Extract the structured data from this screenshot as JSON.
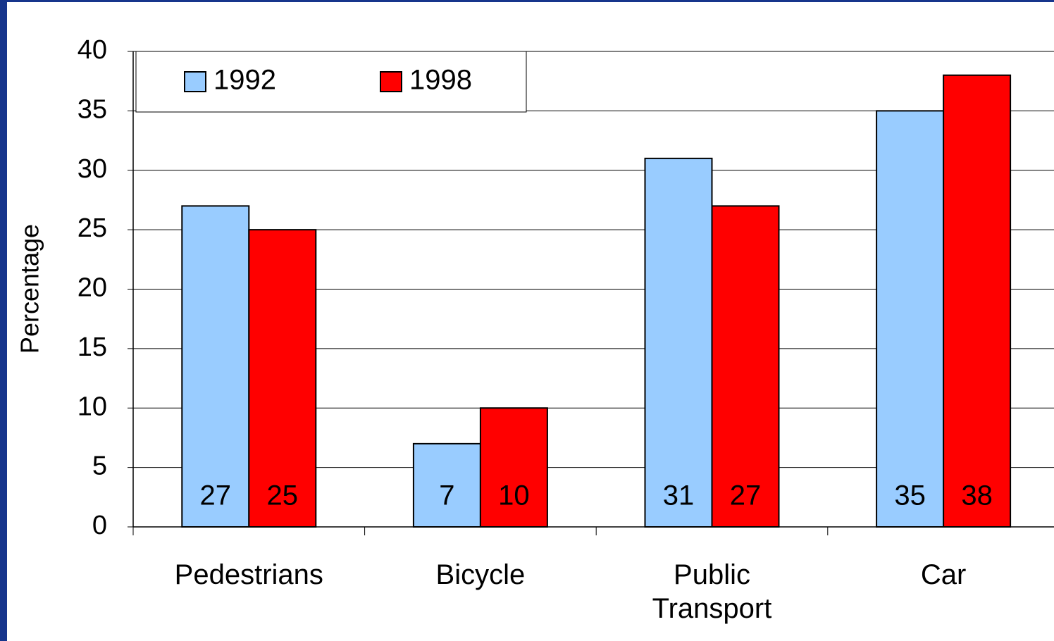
{
  "chart_data": {
    "type": "bar",
    "y_label": "Percentage",
    "categories": [
      "Pedestrians",
      "Bicycle",
      "Public Transport",
      "Car"
    ],
    "series": [
      {
        "name": "1992",
        "color": "#99ccff",
        "values": [
          27,
          7,
          31,
          35
        ]
      },
      {
        "name": "1998",
        "color": "#ff0000",
        "values": [
          25,
          10,
          27,
          38
        ]
      }
    ],
    "ylim": [
      0,
      40
    ],
    "yticks": [
      0,
      5,
      10,
      15,
      20,
      25,
      30,
      35,
      40
    ],
    "grid": true,
    "legend": "top-left"
  }
}
